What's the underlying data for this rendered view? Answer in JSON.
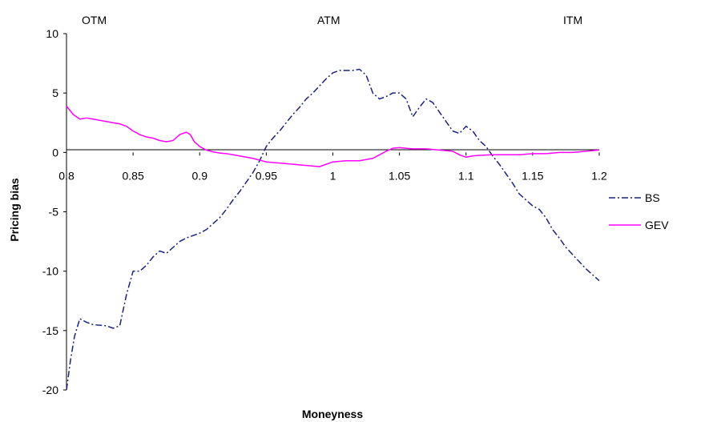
{
  "chart_data": {
    "type": "line",
    "title": "",
    "xlabel": "Moneyness",
    "ylabel": "Pricing bias",
    "xlim": [
      0.8,
      1.2
    ],
    "ylim": [
      -20,
      10
    ],
    "xticks": [
      "0.8",
      "0.85",
      "0.9",
      "0.95",
      "1",
      "1.05",
      "1.1",
      "1.15",
      "1.2"
    ],
    "yticks": [
      "10",
      "5",
      "0",
      "-5",
      "-10",
      "-15",
      "-20"
    ],
    "region_labels": [
      "OTM",
      "ATM",
      "ITM"
    ],
    "grid": false,
    "legend_position": "right",
    "series": [
      {
        "name": "BS",
        "color": "#1a237e",
        "dash": "dash-dot",
        "x": [
          0.8,
          0.803,
          0.806,
          0.81,
          0.815,
          0.82,
          0.83,
          0.835,
          0.84,
          0.845,
          0.85,
          0.855,
          0.86,
          0.865,
          0.87,
          0.875,
          0.88,
          0.885,
          0.89,
          0.895,
          0.9,
          0.905,
          0.91,
          0.915,
          0.92,
          0.925,
          0.93,
          0.935,
          0.94,
          0.945,
          0.95,
          0.955,
          0.96,
          0.965,
          0.97,
          0.975,
          0.98,
          0.985,
          0.99,
          0.995,
          1.0,
          1.005,
          1.01,
          1.015,
          1.02,
          1.025,
          1.03,
          1.035,
          1.04,
          1.045,
          1.05,
          1.055,
          1.06,
          1.065,
          1.07,
          1.075,
          1.08,
          1.085,
          1.09,
          1.095,
          1.1,
          1.105,
          1.11,
          1.115,
          1.12,
          1.125,
          1.13,
          1.135,
          1.14,
          1.145,
          1.15,
          1.155,
          1.16,
          1.165,
          1.17,
          1.175,
          1.18,
          1.185,
          1.19,
          1.195,
          1.2
        ],
        "y": [
          -20.0,
          -17.5,
          -15.5,
          -14.0,
          -14.3,
          -14.5,
          -14.6,
          -14.8,
          -14.6,
          -12.0,
          -10.0,
          -10.0,
          -9.5,
          -8.8,
          -8.3,
          -8.5,
          -8.0,
          -7.5,
          -7.2,
          -7.0,
          -6.8,
          -6.5,
          -6.0,
          -5.5,
          -4.8,
          -4.0,
          -3.3,
          -2.5,
          -1.7,
          -0.7,
          0.5,
          1.2,
          1.8,
          2.5,
          3.2,
          3.8,
          4.5,
          5.0,
          5.6,
          6.2,
          6.7,
          6.9,
          6.9,
          6.9,
          7.0,
          6.5,
          5.0,
          4.5,
          4.7,
          5.0,
          5.0,
          4.5,
          3.0,
          3.8,
          4.5,
          4.2,
          3.4,
          2.6,
          1.8,
          1.6,
          2.2,
          1.8,
          1.0,
          0.5,
          -0.3,
          -1.0,
          -1.8,
          -2.6,
          -3.5,
          -4.0,
          -4.5,
          -4.8,
          -5.5,
          -6.5,
          -7.2,
          -8.0,
          -8.6,
          -9.2,
          -9.8,
          -10.3,
          -10.8
        ]
      },
      {
        "name": "GEV",
        "color": "#ff00ff",
        "dash": "solid",
        "x": [
          0.8,
          0.805,
          0.81,
          0.815,
          0.82,
          0.83,
          0.84,
          0.845,
          0.85,
          0.855,
          0.86,
          0.865,
          0.87,
          0.875,
          0.88,
          0.885,
          0.89,
          0.893,
          0.896,
          0.9,
          0.905,
          0.91,
          0.915,
          0.92,
          0.925,
          0.93,
          0.94,
          0.95,
          0.96,
          0.97,
          0.98,
          0.99,
          1.0,
          1.01,
          1.02,
          1.03,
          1.035,
          1.04,
          1.045,
          1.05,
          1.055,
          1.06,
          1.07,
          1.08,
          1.09,
          1.095,
          1.1,
          1.105,
          1.11,
          1.12,
          1.13,
          1.14,
          1.15,
          1.16,
          1.17,
          1.18,
          1.19,
          1.2
        ],
        "y": [
          3.9,
          3.2,
          2.8,
          2.9,
          2.8,
          2.6,
          2.4,
          2.2,
          1.8,
          1.5,
          1.3,
          1.2,
          1.0,
          0.9,
          1.0,
          1.5,
          1.7,
          1.5,
          0.9,
          0.5,
          0.2,
          0.05,
          -0.05,
          -0.1,
          -0.2,
          -0.3,
          -0.5,
          -0.8,
          -0.9,
          -1.0,
          -1.1,
          -1.2,
          -0.8,
          -0.7,
          -0.7,
          -0.5,
          -0.2,
          0.1,
          0.35,
          0.4,
          0.35,
          0.3,
          0.3,
          0.2,
          0.1,
          -0.2,
          -0.4,
          -0.3,
          -0.25,
          -0.2,
          -0.2,
          -0.2,
          -0.1,
          -0.1,
          0.0,
          0.0,
          0.1,
          0.2
        ]
      }
    ]
  }
}
